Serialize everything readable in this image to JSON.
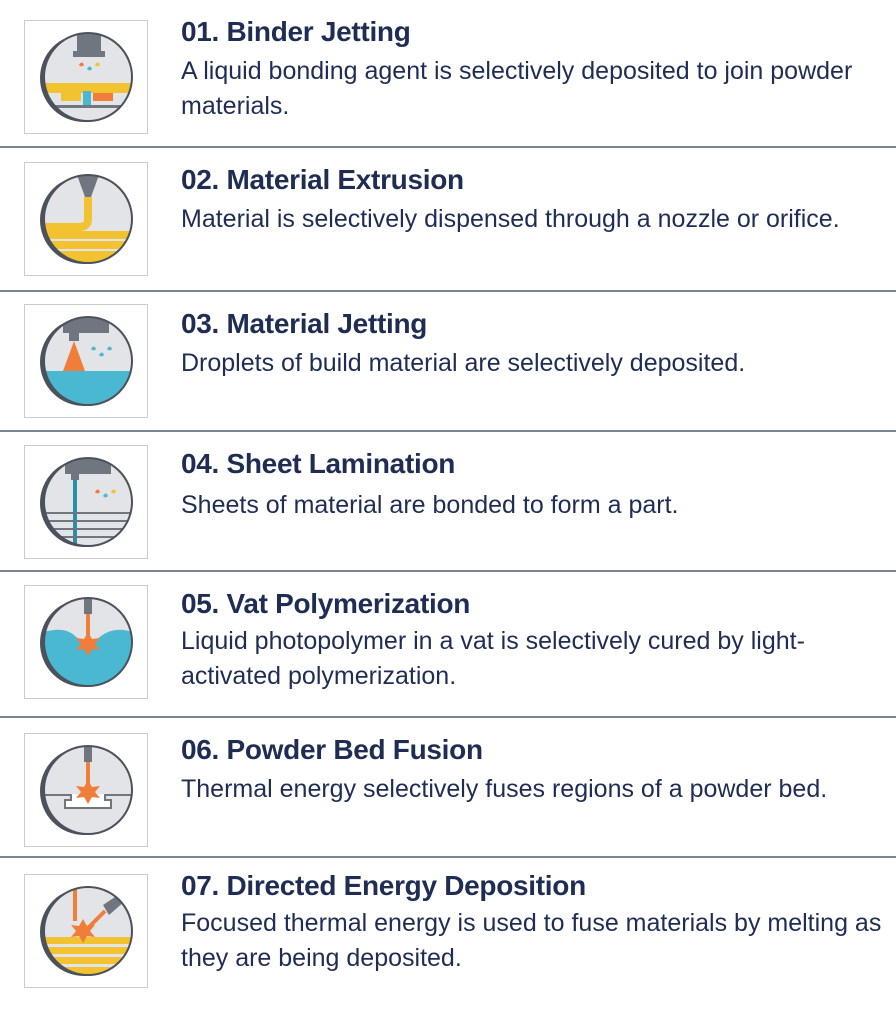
{
  "items": [
    {
      "title": "01. Binder Jetting",
      "description": "A liquid bonding agent is selectively deposited to join powder materials.",
      "icon": "binder-jetting-icon"
    },
    {
      "title": "02. Material Extrusion",
      "description": "Material is selectively dispensed through a nozzle or orifice.",
      "icon": "material-extrusion-icon"
    },
    {
      "title": "03. Material Jetting",
      "description": "Droplets of build material are selectively deposited.",
      "icon": "material-jetting-icon"
    },
    {
      "title": "04. Sheet Lamination",
      "description": "Sheets of material are bonded to form a part.",
      "icon": "sheet-lamination-icon"
    },
    {
      "title": "05. Vat Polymerization",
      "description": "Liquid photopolymer in a vat is selectively cured by light-activated polymerization.",
      "icon": "vat-polymerization-icon"
    },
    {
      "title": "06. Powder Bed Fusion",
      "description": "Thermal energy selectively fuses regions of a powder bed.",
      "icon": "powder-bed-fusion-icon"
    },
    {
      "title": "07. Directed Energy Deposition",
      "description": "Focused thermal energy is used to fuse materials by melting as they are being deposited.",
      "icon": "directed-energy-deposition-icon"
    }
  ],
  "colors": {
    "text": "#1f2d55",
    "yellow": "#f2c230",
    "blue": "#49b8d0",
    "orange": "#f07d3a",
    "gray": "#6f7680",
    "divider": "#7c8594"
  }
}
